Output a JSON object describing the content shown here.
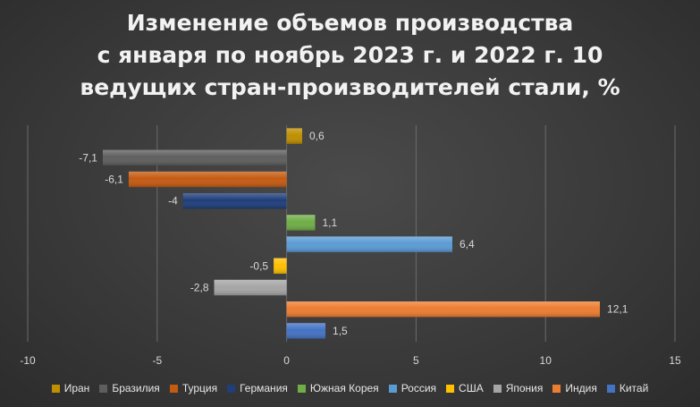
{
  "chart_data": {
    "type": "bar",
    "orientation": "horizontal",
    "title_lines": [
      "Изменение объемов производства",
      "с января по ноябрь 2023 г. и 2022 г. 10",
      "ведущих стран-производителей стали, %"
    ],
    "categories": [
      "Иран",
      "Бразилия",
      "Турция",
      "Германия",
      "Южная Корея",
      "Россия",
      "США",
      "Япония",
      "Индия",
      "Китай"
    ],
    "values": [
      0.6,
      -7.1,
      -6.1,
      -4,
      1.1,
      6.4,
      -0.5,
      -2.8,
      12.1,
      1.5
    ],
    "value_labels": [
      "0,6",
      "-7,1",
      "-6,1",
      "-4",
      "1,1",
      "6,4",
      "-0,5",
      "-2,8",
      "12,1",
      "1,5"
    ],
    "colors": [
      "#bf8f00",
      "#5e5e5e",
      "#c55a11",
      "#1f3e7a",
      "#70ad47",
      "#5b9bd5",
      "#ffc000",
      "#a5a5a5",
      "#ed7d31",
      "#4472c4"
    ],
    "xlim": [
      -10,
      15
    ],
    "x_ticks": [
      -10,
      -5,
      0,
      5,
      10,
      15
    ],
    "grid": true,
    "legend_position": "bottom"
  }
}
